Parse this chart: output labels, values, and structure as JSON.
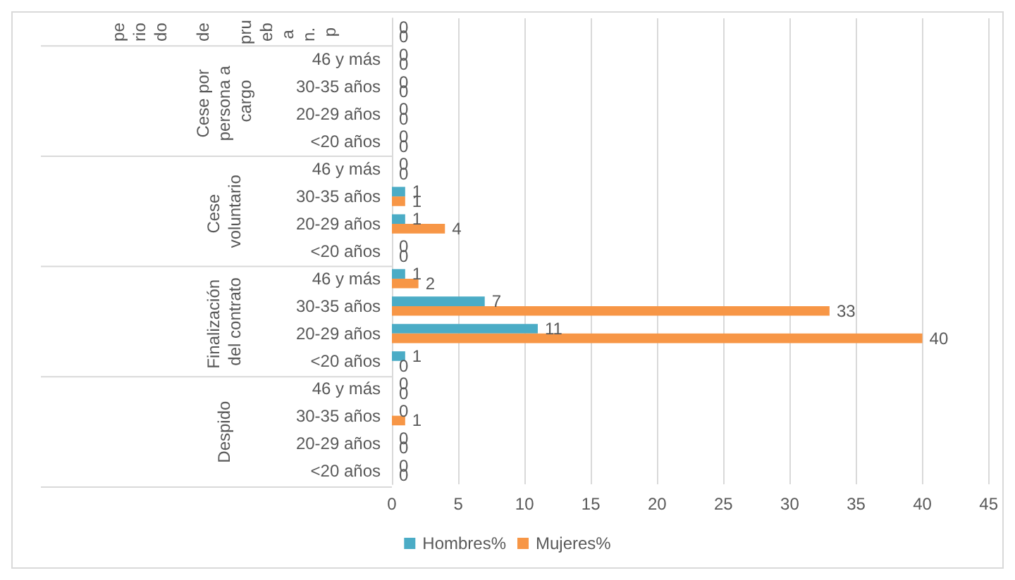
{
  "chart_data": {
    "type": "bar",
    "orientation": "horizontal",
    "categories": [
      null,
      "46 y más",
      "30-35 años",
      "20-29 años",
      "<20 años",
      "46 y más",
      "30-35 años",
      "20-29 años",
      "<20 años",
      "46 y más",
      "30-35 años",
      "20-29 años",
      "<20 años",
      "46 y más",
      "30-35 años",
      "20-29 años",
      "<20 años"
    ],
    "series": [
      {
        "name": "Hombres%",
        "color": "#4bacc6",
        "values": [
          0,
          0,
          0,
          0,
          0,
          0,
          1,
          1,
          0,
          1,
          7,
          11,
          1,
          0,
          0,
          0,
          0
        ]
      },
      {
        "name": "Mujeres%",
        "color": "#f79646",
        "values": [
          0,
          0,
          0,
          0,
          0,
          0,
          1,
          4,
          0,
          2,
          33,
          40,
          0,
          0,
          1,
          0,
          0
        ]
      }
    ],
    "annotations": [
      "periodo de prueba n. p",
      "Cese por persona a cargo",
      "Cese voluntario",
      "Finalización del contrato",
      "Despido"
    ],
    "xlim": [
      0,
      45
    ],
    "xticks": [
      0,
      5,
      10,
      15,
      20,
      25,
      30,
      35,
      40,
      45
    ],
    "grid": "x",
    "legend": "bottom",
    "data_labels": true
  }
}
